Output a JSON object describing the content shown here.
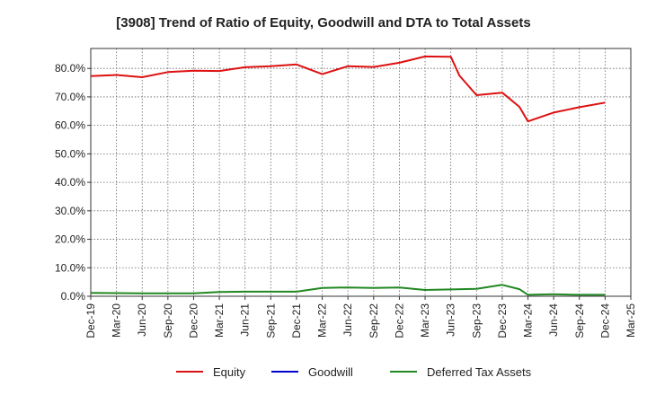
{
  "chart_data": {
    "type": "line",
    "title": "[3908]  Trend of Ratio of Equity, Goodwill and DTA to Total Assets",
    "xlabel": "",
    "ylabel": "",
    "ylim": [
      0,
      87
    ],
    "yticks": [
      0,
      10,
      20,
      30,
      40,
      50,
      60,
      70,
      80
    ],
    "ytick_labels": [
      "0.0%",
      "10.0%",
      "20.0%",
      "30.0%",
      "40.0%",
      "50.0%",
      "60.0%",
      "70.0%",
      "80.0%"
    ],
    "xticks": [
      "Dec-19",
      "Mar-20",
      "Jun-20",
      "Sep-20",
      "Dec-20",
      "Mar-21",
      "Jun-21",
      "Sep-21",
      "Dec-21",
      "Mar-22",
      "Jun-22",
      "Sep-22",
      "Dec-22",
      "Mar-23",
      "Jun-23",
      "Sep-23",
      "Dec-23",
      "Mar-24",
      "Jun-24",
      "Sep-24",
      "Dec-24",
      "Mar-25"
    ],
    "grid": true,
    "legend_position": "bottom",
    "series": [
      {
        "name": "Equity",
        "color": "#dd1111",
        "points": [
          [
            "Dec-19",
            77.3
          ],
          [
            "Mar-20",
            77.7
          ],
          [
            "Jun-20",
            76.9
          ],
          [
            "Sep-20",
            78.7
          ],
          [
            "Dec-20",
            79.2
          ],
          [
            "Mar-21",
            79.1
          ],
          [
            "Jun-21",
            80.4
          ],
          [
            "Sep-21",
            80.8
          ],
          [
            "Dec-21",
            81.4
          ],
          [
            "Mar-22",
            78.0
          ],
          [
            "Jun-22",
            80.8
          ],
          [
            "Sep-22",
            80.5
          ],
          [
            "Dec-22",
            82.0
          ],
          [
            "Mar-23",
            84.2
          ],
          [
            "Jun-23",
            84.1
          ],
          [
            "Jul-23",
            77.5
          ],
          [
            "Sep-23",
            70.6
          ],
          [
            "Dec-23",
            71.5
          ],
          [
            "Feb-24",
            66.5
          ],
          [
            "Mar-24",
            61.4
          ],
          [
            "Jun-24",
            64.5
          ],
          [
            "Sep-24",
            66.4
          ],
          [
            "Dec-24",
            68.0
          ]
        ]
      },
      {
        "name": "Goodwill",
        "color": "#0000cc",
        "points": []
      },
      {
        "name": "Deferred Tax Assets",
        "color": "#228822",
        "points": [
          [
            "Dec-19",
            1.2
          ],
          [
            "Mar-20",
            1.1
          ],
          [
            "Jun-20",
            1.0
          ],
          [
            "Sep-20",
            1.0
          ],
          [
            "Dec-20",
            1.0
          ],
          [
            "Mar-21",
            1.5
          ],
          [
            "Jun-21",
            1.6
          ],
          [
            "Sep-21",
            1.6
          ],
          [
            "Dec-21",
            1.6
          ],
          [
            "Mar-22",
            2.9
          ],
          [
            "Jun-22",
            3.1
          ],
          [
            "Sep-22",
            2.9
          ],
          [
            "Dec-22",
            3.1
          ],
          [
            "Mar-23",
            2.2
          ],
          [
            "Jun-23",
            2.4
          ],
          [
            "Sep-23",
            2.6
          ],
          [
            "Dec-23",
            4.0
          ],
          [
            "Feb-24",
            2.5
          ],
          [
            "Mar-24",
            0.5
          ],
          [
            "Jun-24",
            0.7
          ],
          [
            "Sep-24",
            0.5
          ],
          [
            "Dec-24",
            0.5
          ]
        ]
      }
    ]
  }
}
